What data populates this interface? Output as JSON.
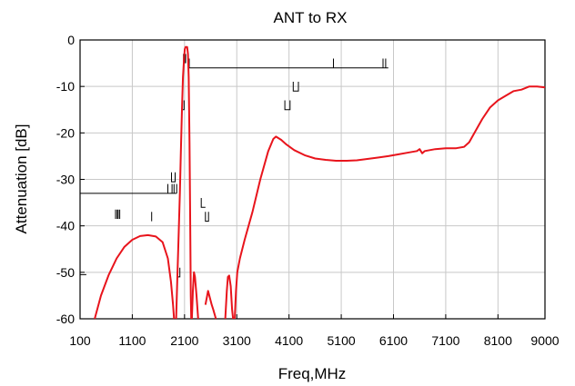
{
  "chart_data": {
    "type": "line",
    "title": "ANT to RX",
    "xlabel": "Freq,MHz",
    "ylabel": "Attenuation [dB]",
    "xlim": [
      100,
      9000
    ],
    "ylim": [
      -60,
      0
    ],
    "grid": true,
    "x_ticks": [
      {
        "value": 100,
        "label": "100"
      },
      {
        "value": 1100,
        "label": "1100"
      },
      {
        "value": 2100,
        "label": "2100"
      },
      {
        "value": 3100,
        "label": "3100"
      },
      {
        "value": 4100,
        "label": "4100"
      },
      {
        "value": 5100,
        "label": "5100"
      },
      {
        "value": 6100,
        "label": "6100"
      },
      {
        "value": 7100,
        "label": "7100"
      },
      {
        "value": 8100,
        "label": "8100"
      },
      {
        "value": 9000,
        "label": "9000"
      }
    ],
    "y_ticks": [
      {
        "value": 0,
        "label": "0"
      },
      {
        "value": -10,
        "label": "-10"
      },
      {
        "value": -20,
        "label": "-20"
      },
      {
        "value": -30,
        "label": "-30"
      },
      {
        "value": -40,
        "label": "-40"
      },
      {
        "value": -50,
        "label": "-50"
      },
      {
        "value": -60,
        "label": "-60"
      }
    ],
    "series": [
      {
        "color": "#e8141c",
        "segments": [
          [
            [
              380,
              -60
            ],
            [
              500,
              -55
            ],
            [
              650,
              -50.5
            ],
            [
              800,
              -47
            ],
            [
              950,
              -44.5
            ],
            [
              1100,
              -43
            ],
            [
              1250,
              -42.2
            ],
            [
              1400,
              -42
            ],
            [
              1550,
              -42.3
            ],
            [
              1680,
              -43.5
            ],
            [
              1780,
              -47
            ],
            [
              1840,
              -52
            ],
            [
              1880,
              -57
            ],
            [
              1900,
              -60
            ]
          ],
          [
            [
              1940,
              -60
            ],
            [
              1960,
              -52
            ],
            [
              1985,
              -43
            ],
            [
              2010,
              -33
            ],
            [
              2030,
              -24
            ],
            [
              2050,
              -15
            ],
            [
              2070,
              -8
            ],
            [
              2090,
              -4
            ],
            [
              2105,
              -2
            ],
            [
              2120,
              -1.5
            ],
            [
              2150,
              -1.5
            ],
            [
              2165,
              -3
            ],
            [
              2180,
              -8
            ],
            [
              2195,
              -22
            ],
            [
              2210,
              -40
            ],
            [
              2220,
              -55
            ],
            [
              2228,
              -60
            ]
          ],
          [
            [
              2240,
              -60
            ],
            [
              2260,
              -54
            ],
            [
              2280,
              -50
            ],
            [
              2300,
              -51
            ],
            [
              2330,
              -55
            ],
            [
              2360,
              -60
            ]
          ],
          [
            [
              2500,
              -57
            ],
            [
              2550,
              -54
            ],
            [
              2620,
              -57
            ],
            [
              2650,
              -58
            ],
            [
              2700,
              -60
            ]
          ],
          [
            [
              2880,
              -60
            ],
            [
              2910,
              -54
            ],
            [
              2930,
              -51
            ],
            [
              2955,
              -50.7
            ],
            [
              2985,
              -53
            ],
            [
              3010,
              -58
            ],
            [
              3030,
              -60
            ]
          ],
          [
            [
              3060,
              -60
            ],
            [
              3085,
              -54
            ],
            [
              3110,
              -50
            ],
            [
              3160,
              -47
            ],
            [
              3250,
              -43
            ],
            [
              3400,
              -37
            ],
            [
              3550,
              -30
            ],
            [
              3700,
              -24
            ],
            [
              3800,
              -21.3
            ],
            [
              3850,
              -20.8
            ],
            [
              3950,
              -21.5
            ],
            [
              4050,
              -22.5
            ],
            [
              4200,
              -23.7
            ],
            [
              4400,
              -24.8
            ],
            [
              4600,
              -25.5
            ],
            [
              4800,
              -25.8
            ],
            [
              5000,
              -26
            ],
            [
              5200,
              -26
            ],
            [
              5400,
              -25.9
            ],
            [
              5600,
              -25.6
            ],
            [
              5800,
              -25.3
            ],
            [
              6000,
              -25
            ],
            [
              6200,
              -24.6
            ],
            [
              6400,
              -24.2
            ],
            [
              6550,
              -23.9
            ],
            [
              6600,
              -23.5
            ],
            [
              6650,
              -24.4
            ],
            [
              6700,
              -23.9
            ],
            [
              6900,
              -23.5
            ],
            [
              7100,
              -23.3
            ],
            [
              7300,
              -23.3
            ],
            [
              7450,
              -23
            ],
            [
              7550,
              -22
            ],
            [
              7650,
              -20
            ],
            [
              7800,
              -17
            ],
            [
              7950,
              -14.5
            ],
            [
              8100,
              -13
            ],
            [
              8250,
              -12
            ],
            [
              8400,
              -11
            ],
            [
              8550,
              -10.7
            ],
            [
              8700,
              -10
            ],
            [
              8850,
              -10
            ],
            [
              9000,
              -10.2
            ]
          ]
        ]
      }
    ],
    "spec_marks": {
      "color": "#000000",
      "polylines": [
        [
          [
            100,
            -49.5
          ],
          [
            100,
            -50.5
          ],
          [
            220,
            -50.5
          ]
        ],
        [
          [
            100,
            -33
          ],
          [
            1950,
            -33
          ]
        ],
        [
          [
            2170,
            -6
          ],
          [
            6000,
            -6
          ]
        ],
        [
          [
            4950,
            -4
          ],
          [
            4950,
            -6
          ]
        ],
        [
          [
            5900,
            -4
          ],
          [
            5900,
            -6
          ]
        ],
        [
          [
            5950,
            -4
          ],
          [
            5950,
            -6
          ]
        ],
        [
          [
            2190,
            -4
          ],
          [
            2190,
            -6
          ]
        ],
        [
          [
            1850,
            -28.5
          ],
          [
            1850,
            -30.5
          ],
          [
            1920,
            -30.5
          ],
          [
            1920,
            -28.5
          ]
        ],
        [
          [
            1780,
            -31
          ],
          [
            1780,
            -33
          ]
        ],
        [
          [
            1860,
            -31
          ],
          [
            1860,
            -33
          ]
        ],
        [
          [
            1900,
            -31
          ],
          [
            1900,
            -33
          ]
        ],
        [
          [
            1950,
            -31
          ],
          [
            1950,
            -33
          ]
        ],
        [
          [
            4180,
            -9
          ],
          [
            4180,
            -11
          ],
          [
            4280,
            -11
          ],
          [
            4280,
            -9
          ]
        ],
        [
          [
            4020,
            -13
          ],
          [
            4020,
            -15
          ],
          [
            4120,
            -15
          ],
          [
            4120,
            -13
          ]
        ],
        [
          [
            2050,
            -13
          ],
          [
            2050,
            -15
          ],
          [
            2090,
            -15
          ],
          [
            2090,
            -13
          ]
        ],
        [
          [
            2080,
            -3
          ],
          [
            2080,
            -5
          ]
        ],
        [
          [
            2100,
            -3
          ],
          [
            2100,
            -5
          ]
        ],
        [
          [
            2120,
            -3
          ],
          [
            2120,
            -5
          ]
        ],
        [
          [
            2420,
            -34
          ],
          [
            2420,
            -36
          ],
          [
            2500,
            -36
          ]
        ],
        [
          [
            2500,
            -37
          ],
          [
            2500,
            -39
          ],
          [
            2560,
            -39
          ],
          [
            2560,
            -37
          ]
        ],
        [
          [
            1970,
            -49
          ],
          [
            1970,
            -51
          ],
          [
            2010,
            -51
          ],
          [
            2010,
            -49
          ]
        ],
        [
          [
            780,
            -36.5
          ],
          [
            780,
            -38.5
          ]
        ],
        [
          [
            810,
            -36.5
          ],
          [
            810,
            -38.5
          ]
        ],
        [
          [
            830,
            -36.5
          ],
          [
            830,
            -38.5
          ]
        ],
        [
          [
            860,
            -36.5
          ],
          [
            860,
            -38.5
          ]
        ],
        [
          [
            1470,
            -37
          ],
          [
            1470,
            -39
          ]
        ]
      ]
    }
  }
}
